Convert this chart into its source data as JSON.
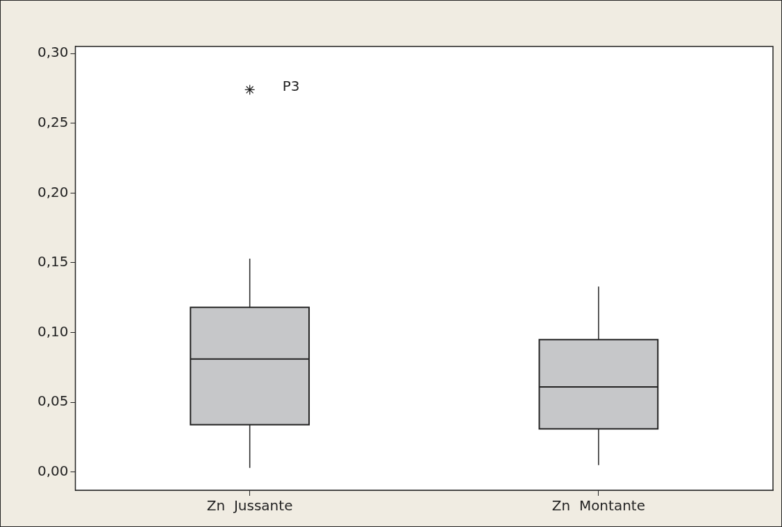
{
  "chart_data": {
    "type": "box",
    "categories": [
      "Zn  Jussante",
      "Zn  Montante"
    ],
    "series": [
      {
        "color": "#c6c7c9",
        "boxes": [
          {
            "low": 0.003,
            "q1": 0.034,
            "median": 0.081,
            "q3": 0.118,
            "high": 0.153,
            "outliers": [
              0.274
            ]
          },
          {
            "low": 0.005,
            "q1": 0.031,
            "median": 0.061,
            "q3": 0.095,
            "high": 0.133
          }
        ]
      }
    ],
    "ylim": [
      -0.013,
      0.305
    ],
    "yticks": [
      {
        "value": 0,
        "label": "0,00"
      },
      {
        "value": 0.05,
        "label": "0,05"
      },
      {
        "value": 0.1,
        "label": "0,10"
      },
      {
        "value": 0.15,
        "label": "0,15"
      },
      {
        "value": 0.2,
        "label": "0,20"
      },
      {
        "value": 0.25,
        "label": "0,25"
      },
      {
        "value": 0.3,
        "label": "0,30"
      }
    ],
    "annotations": [
      "P3"
    ],
    "marker": "star"
  }
}
